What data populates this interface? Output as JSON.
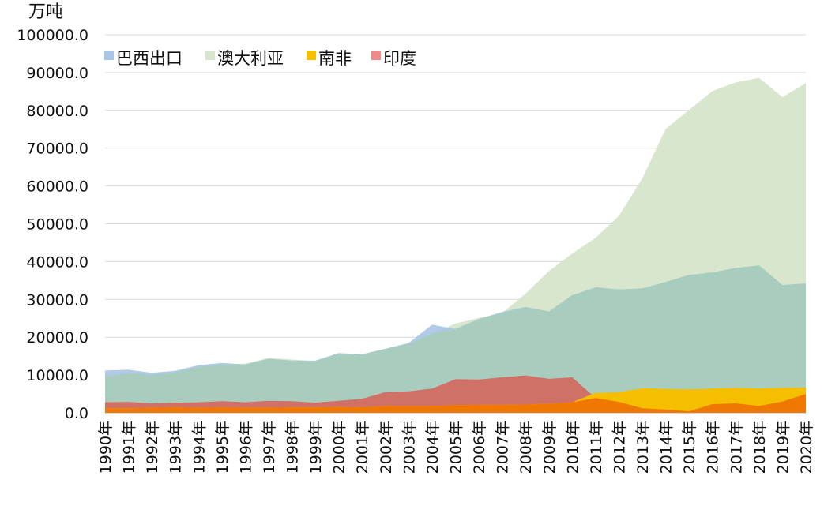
{
  "chart_data": {
    "type": "area",
    "title": "",
    "unit_label": "万吨",
    "xlabel": "",
    "ylabel": "",
    "ylim": [
      0,
      100000
    ],
    "y_ticks": [
      "0.0",
      "10000.0",
      "20000.0",
      "30000.0",
      "40000.0",
      "50000.0",
      "60000.0",
      "70000.0",
      "80000.0",
      "90000.0",
      "100000.0"
    ],
    "grid": true,
    "legend_position": "top-left",
    "categories": [
      "1990年",
      "1991年",
      "1992年",
      "1993年",
      "1994年",
      "1995年",
      "1996年",
      "1997年",
      "1998年",
      "1999年",
      "2000年",
      "2001年",
      "2002年",
      "2003年",
      "2004年",
      "2005年",
      "2006年",
      "2007年",
      "2008年",
      "2009年",
      "2010年",
      "2011年",
      "2012年",
      "2013年",
      "2014年",
      "2015年",
      "2016年",
      "2017年",
      "2018年",
      "2019年",
      "2020年"
    ],
    "series": [
      {
        "name": "巴西出口",
        "color": "#a9c6e6",
        "values": [
          11200,
          11400,
          10600,
          11100,
          12600,
          13200,
          12800,
          14300,
          13800,
          13800,
          15800,
          15500,
          16900,
          18500,
          23300,
          22200,
          24800,
          26700,
          28000,
          26800,
          31100,
          33200,
          32600,
          32900,
          34600,
          36500,
          37100,
          38300,
          39000,
          33800,
          34200
        ]
      },
      {
        "name": "澳大利亚",
        "color": "#d7e6cd",
        "values": [
          9500,
          10500,
          10100,
          10700,
          12200,
          12700,
          13000,
          14500,
          14100,
          13700,
          15600,
          15400,
          17000,
          18200,
          21000,
          23600,
          25100,
          26400,
          31500,
          37500,
          42100,
          46300,
          52100,
          62000,
          75100,
          80100,
          85100,
          87400,
          88600,
          83500,
          87200
        ]
      },
      {
        "name": "南非",
        "color": "#f5bf00",
        "values": [
          1200,
          1200,
          1300,
          1400,
          1300,
          1400,
          1300,
          1300,
          1400,
          1400,
          1500,
          1400,
          1800,
          1800,
          1800,
          2000,
          2100,
          2100,
          2200,
          2400,
          2800,
          5300,
          5500,
          6500,
          6300,
          6200,
          6400,
          6600,
          6400,
          6600,
          6700
        ]
      },
      {
        "name": "印度",
        "color": "#ee8a8a",
        "values": [
          2800,
          2900,
          2500,
          2700,
          2800,
          3100,
          2800,
          3200,
          3100,
          2700,
          3200,
          3700,
          5500,
          5700,
          6400,
          8900,
          8800,
          9400,
          9900,
          9000,
          9400,
          3900,
          2900,
          1200,
          900,
          400,
          2300,
          2500,
          1800,
          3000,
          5000
        ]
      }
    ]
  }
}
